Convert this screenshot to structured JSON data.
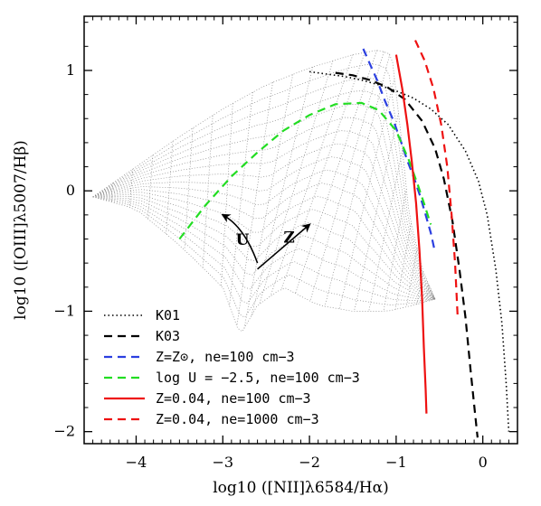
{
  "chart_data": {
    "type": "line",
    "title": "",
    "xlabel": "log10 ([NII]λ6584/Hα)",
    "ylabel": "log10 ([OIII]λ5007/Hβ)",
    "xlim": [
      -4.6,
      0.4
    ],
    "ylim": [
      -2.1,
      1.45
    ],
    "x_ticks": [
      -4,
      -3,
      -2,
      -1,
      0
    ],
    "y_ticks": [
      -2,
      -1,
      0,
      1
    ],
    "x_tick_labels": [
      "−4",
      "−3",
      "−2",
      "−1",
      "0"
    ],
    "y_tick_labels": [
      "−2",
      "−1",
      "0",
      "1"
    ],
    "grid": false,
    "legend_position": "bottom-left",
    "annotations": [
      {
        "text": "U",
        "x": -2.85,
        "y": -0.45
      },
      {
        "text": "Z",
        "x": -2.3,
        "y": -0.43
      }
    ],
    "series": [
      {
        "name": "K01",
        "color": "#000000",
        "style": "dotted",
        "x": [
          -2.0,
          -1.8,
          -1.6,
          -1.4,
          -1.2,
          -1.0,
          -0.8,
          -0.6,
          -0.4,
          -0.2,
          -0.05,
          0.05,
          0.15,
          0.22,
          0.27,
          0.3
        ],
        "y": [
          0.99,
          0.97,
          0.95,
          0.92,
          0.88,
          0.83,
          0.77,
          0.68,
          0.55,
          0.33,
          0.08,
          -0.2,
          -0.65,
          -1.1,
          -1.6,
          -2.0
        ]
      },
      {
        "name": "K03",
        "color": "#000000",
        "style": "dashed",
        "x": [
          -1.7,
          -1.5,
          -1.3,
          -1.1,
          -0.9,
          -0.7,
          -0.55,
          -0.45,
          -0.35,
          -0.27,
          -0.2,
          -0.14,
          -0.09,
          -0.06
        ],
        "y": [
          0.98,
          0.96,
          0.92,
          0.86,
          0.76,
          0.58,
          0.35,
          0.1,
          -0.25,
          -0.65,
          -1.05,
          -1.5,
          -1.85,
          -2.05
        ]
      },
      {
        "name": "Z=Z⊙, ne=100 cm−3",
        "color": "#2b3fe0",
        "style": "dashed",
        "x": [
          -1.38,
          -1.3,
          -1.22,
          -1.13,
          -1.03,
          -0.95,
          -0.87,
          -0.79,
          -0.72,
          -0.66,
          -0.6,
          -0.56
        ],
        "y": [
          1.18,
          1.05,
          0.92,
          0.75,
          0.58,
          0.42,
          0.25,
          0.1,
          -0.05,
          -0.2,
          -0.35,
          -0.48
        ]
      },
      {
        "name": "log U = −2.5, ne=100 cm−3",
        "color": "#22dd22",
        "style": "dashed",
        "x": [
          -3.5,
          -3.2,
          -2.9,
          -2.6,
          -2.3,
          -2.0,
          -1.7,
          -1.4,
          -1.2,
          -1.0,
          -0.85,
          -0.75,
          -0.68,
          -0.6
        ],
        "y": [
          -0.4,
          -0.12,
          0.12,
          0.32,
          0.5,
          0.63,
          0.72,
          0.73,
          0.67,
          0.5,
          0.25,
          0.05,
          -0.1,
          -0.28
        ]
      },
      {
        "name": "Z=0.04, ne=100 cm−3",
        "color": "#ee1111",
        "style": "solid",
        "x": [
          -1.0,
          -0.93,
          -0.87,
          -0.82,
          -0.77,
          -0.73,
          -0.7,
          -0.68,
          -0.66,
          -0.65
        ],
        "y": [
          1.13,
          0.85,
          0.55,
          0.25,
          -0.1,
          -0.5,
          -0.9,
          -1.3,
          -1.65,
          -1.85
        ]
      },
      {
        "name": "Z=0.04, ne=1000 cm−3",
        "color": "#ee1111",
        "style": "dashed",
        "x": [
          -0.78,
          -0.67,
          -0.57,
          -0.48,
          -0.41,
          -0.36,
          -0.32,
          -0.29
        ],
        "y": [
          1.25,
          1.08,
          0.85,
          0.55,
          0.2,
          -0.2,
          -0.6,
          -1.05
        ]
      }
    ]
  }
}
